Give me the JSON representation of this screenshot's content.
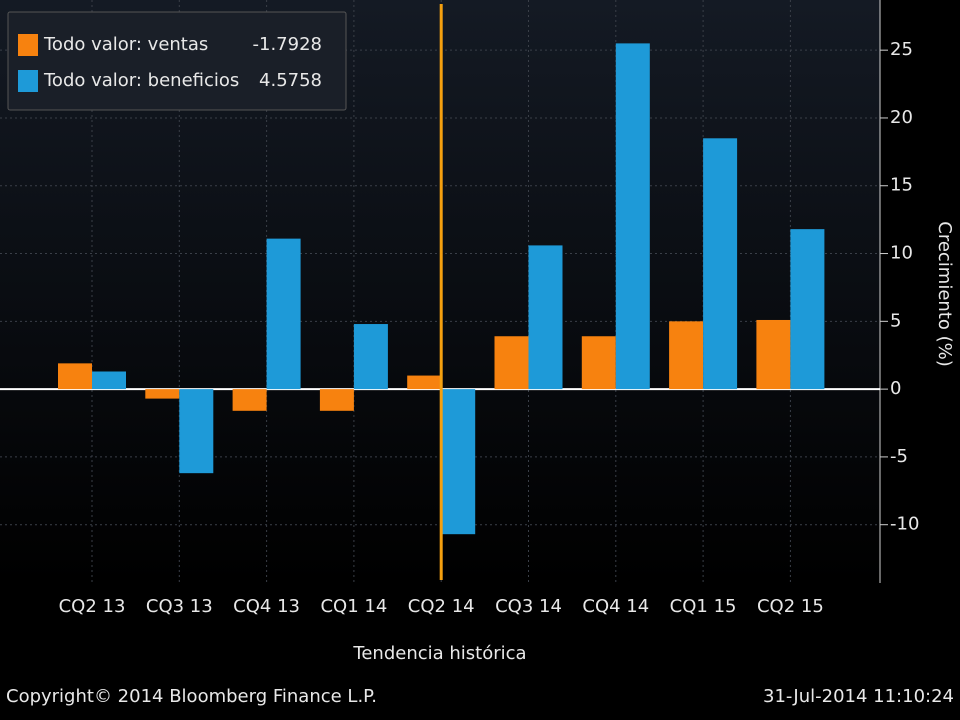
{
  "chart_data": {
    "type": "bar",
    "categories": [
      "CQ2 13",
      "CQ3 13",
      "CQ4 13",
      "CQ1 14",
      "CQ2 14",
      "CQ3 14",
      "CQ4 14",
      "CQ1 15",
      "CQ2 15"
    ],
    "series": [
      {
        "name": "Todo valor: ventas",
        "last_value": -1.7928,
        "color": "#f7820f",
        "values": [
          1.9,
          -0.7,
          -1.6,
          -1.6,
          1.0,
          3.9,
          3.9,
          5.0,
          5.1
        ]
      },
      {
        "name": "Todo valor: beneficios",
        "last_value": 4.5758,
        "color": "#1e9ad8",
        "values": [
          1.3,
          -6.2,
          11.1,
          4.8,
          -10.7,
          10.6,
          25.5,
          18.5,
          11.8
        ]
      }
    ],
    "ylim": [
      -14.3,
      28.7
    ],
    "yticks": [
      -10,
      -5,
      0,
      5,
      10,
      15,
      20,
      25
    ],
    "y_label": "Crecimiento (%)",
    "x_label": "Tendencia histórica",
    "highlight_category": "CQ2 14",
    "highlight_color": "#f5a00f",
    "grid": true,
    "legend": "upper left",
    "footer_left": "Copyright© 2014 Bloomberg Finance L.P.",
    "footer_right": "31-Jul-2014 11:10:24"
  }
}
